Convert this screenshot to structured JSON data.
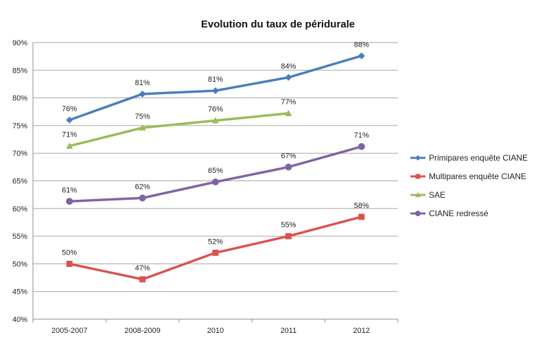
{
  "chart_data": {
    "type": "line",
    "title": "Evolution du taux de péridurale",
    "xlabel": "",
    "ylabel": "",
    "categories": [
      "2005-2007",
      "2008-2009",
      "2010",
      "2011",
      "2012"
    ],
    "ylim": [
      40,
      90
    ],
    "yticks": [
      40,
      45,
      50,
      55,
      60,
      65,
      70,
      75,
      80,
      85,
      90
    ],
    "ytick_labels": [
      "40%",
      "45%",
      "50%",
      "55%",
      "60%",
      "65%",
      "70%",
      "75%",
      "80%",
      "85%",
      "90%"
    ],
    "grid": true,
    "legend_position": "right",
    "series": [
      {
        "name": "Primipares enquête CIANE",
        "color": "#4a7ebb",
        "marker": "diamond",
        "values": [
          76,
          80.7,
          81.3,
          83.7,
          87.6
        ],
        "labels": [
          "76%",
          "81%",
          "81%",
          "84%",
          "88%"
        ]
      },
      {
        "name": "Multipares enquête CIANE",
        "color": "#d9534f",
        "marker": "square",
        "values": [
          50,
          47.2,
          52,
          55,
          58.5
        ],
        "labels": [
          "50%",
          "47%",
          "52%",
          "55%",
          "58%"
        ]
      },
      {
        "name": "SAE",
        "color": "#9bbb59",
        "marker": "triangle",
        "values": [
          71.3,
          74.6,
          75.9,
          77.2,
          null
        ],
        "labels": [
          "71%",
          "75%",
          "76%",
          "77%",
          ""
        ]
      },
      {
        "name": "CIANE redressé",
        "color": "#8064a2",
        "marker": "circle",
        "values": [
          61.3,
          61.9,
          64.8,
          67.5,
          71.2
        ],
        "labels": [
          "61%",
          "62%",
          "65%",
          "67%",
          "71%"
        ]
      }
    ]
  }
}
